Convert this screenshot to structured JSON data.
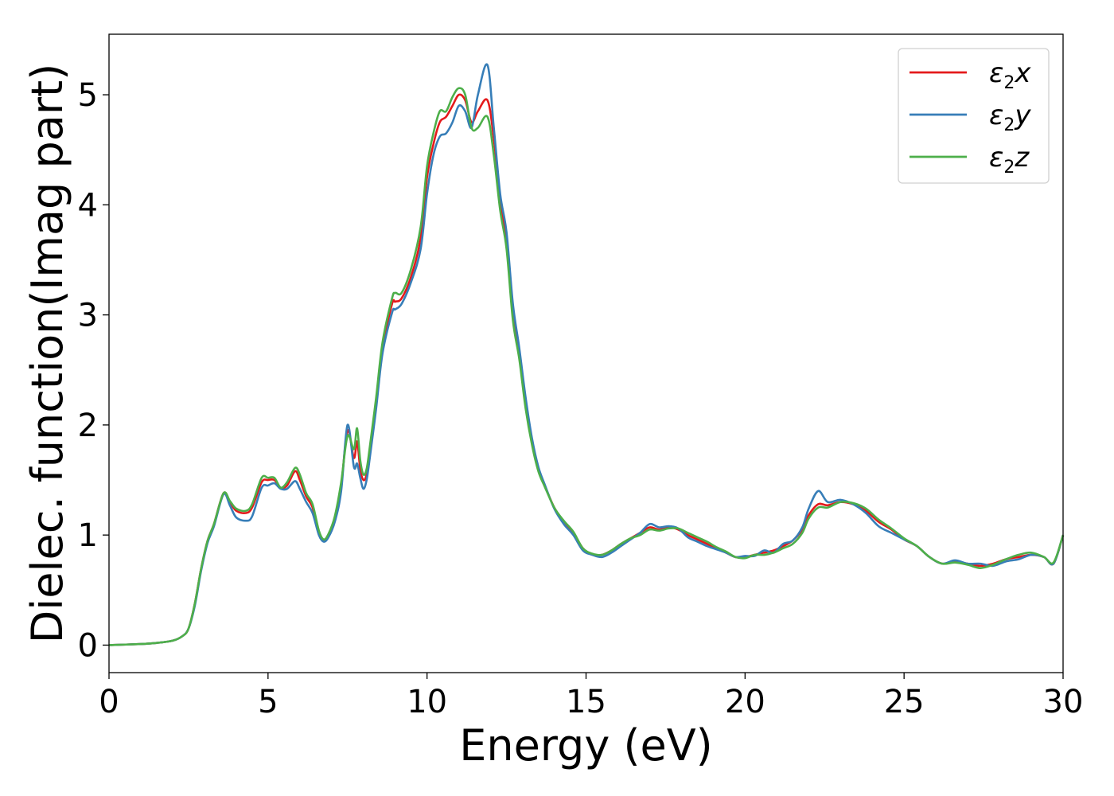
{
  "chart_data": {
    "type": "line",
    "title": "",
    "xlabel": "Energy (eV)",
    "ylabel": "Dielec. function(Imag part)",
    "xlim": [
      0,
      30
    ],
    "ylim": [
      -0.25,
      5.55
    ],
    "xticks": [
      "0",
      "5",
      "10",
      "15",
      "20",
      "25",
      "30"
    ],
    "yticks": [
      "0",
      "1",
      "2",
      "3",
      "4",
      "5"
    ],
    "grid": false,
    "legend_position": "top-right",
    "series": [
      {
        "name": "ε2x",
        "color": "#e41a1c",
        "x": [
          0,
          1,
          1.5,
          2,
          2.3,
          2.5,
          2.7,
          2.9,
          3.1,
          3.3,
          3.6,
          3.8,
          4.0,
          4.3,
          4.5,
          4.8,
          5.0,
          5.2,
          5.4,
          5.6,
          5.85,
          6.0,
          6.2,
          6.4,
          6.6,
          6.75,
          6.9,
          7.1,
          7.3,
          7.5,
          7.7,
          7.8,
          7.9,
          8.0,
          8.1,
          8.2,
          8.4,
          8.6,
          8.9,
          9.0,
          9.2,
          9.5,
          9.8,
          10.0,
          10.2,
          10.4,
          10.6,
          10.8,
          11.0,
          11.2,
          11.4,
          11.6,
          11.9,
          12.1,
          12.3,
          12.5,
          12.7,
          12.9,
          13.1,
          13.3,
          13.5,
          13.7,
          14.0,
          14.3,
          14.6,
          14.9,
          15.2,
          15.5,
          15.8,
          16.1,
          16.4,
          16.7,
          17.0,
          17.3,
          17.6,
          17.9,
          18.2,
          18.5,
          18.8,
          19.1,
          19.4,
          19.7,
          20.0,
          20.3,
          20.6,
          20.9,
          21.2,
          21.5,
          21.8,
          22.0,
          22.3,
          22.6,
          23.0,
          23.4,
          23.8,
          24.2,
          24.6,
          25.0,
          25.4,
          25.8,
          26.2,
          26.6,
          27.0,
          27.4,
          27.8,
          28.2,
          28.6,
          29.0,
          29.4,
          29.7,
          30.0
        ],
        "y": [
          0,
          0.01,
          0.02,
          0.04,
          0.08,
          0.15,
          0.38,
          0.7,
          0.95,
          1.1,
          1.38,
          1.3,
          1.22,
          1.2,
          1.25,
          1.48,
          1.5,
          1.5,
          1.43,
          1.45,
          1.58,
          1.5,
          1.35,
          1.25,
          1.02,
          0.95,
          1.0,
          1.15,
          1.45,
          1.95,
          1.7,
          1.85,
          1.6,
          1.5,
          1.55,
          1.75,
          2.2,
          2.7,
          3.1,
          3.12,
          3.15,
          3.35,
          3.7,
          4.25,
          4.55,
          4.75,
          4.8,
          4.9,
          5.0,
          4.95,
          4.75,
          4.85,
          4.95,
          4.6,
          4.05,
          3.65,
          3.0,
          2.65,
          2.2,
          1.85,
          1.6,
          1.45,
          1.25,
          1.12,
          1.02,
          0.88,
          0.82,
          0.82,
          0.86,
          0.92,
          0.97,
          1.02,
          1.07,
          1.05,
          1.07,
          1.05,
          1.0,
          0.96,
          0.92,
          0.88,
          0.84,
          0.8,
          0.8,
          0.82,
          0.84,
          0.86,
          0.9,
          0.95,
          1.05,
          1.18,
          1.28,
          1.27,
          1.3,
          1.28,
          1.22,
          1.12,
          1.05,
          0.96,
          0.9,
          0.8,
          0.74,
          0.76,
          0.74,
          0.72,
          0.74,
          0.78,
          0.8,
          0.82,
          0.8,
          0.74,
          1.0
        ]
      },
      {
        "name": "ε2y",
        "color": "#377eb8",
        "x": [
          0,
          1,
          1.5,
          2,
          2.3,
          2.5,
          2.7,
          2.9,
          3.1,
          3.3,
          3.6,
          3.8,
          4.0,
          4.3,
          4.5,
          4.8,
          5.0,
          5.2,
          5.4,
          5.6,
          5.85,
          6.0,
          6.2,
          6.4,
          6.6,
          6.75,
          6.9,
          7.1,
          7.3,
          7.5,
          7.7,
          7.8,
          7.9,
          8.0,
          8.1,
          8.2,
          8.4,
          8.6,
          8.9,
          9.0,
          9.2,
          9.5,
          9.8,
          10.0,
          10.2,
          10.4,
          10.6,
          10.8,
          11.0,
          11.2,
          11.4,
          11.6,
          11.9,
          12.1,
          12.3,
          12.5,
          12.7,
          12.9,
          13.1,
          13.3,
          13.5,
          13.7,
          14.0,
          14.3,
          14.6,
          14.9,
          15.2,
          15.5,
          15.8,
          16.1,
          16.4,
          16.7,
          17.0,
          17.3,
          17.6,
          17.9,
          18.2,
          18.5,
          18.8,
          19.1,
          19.4,
          19.7,
          20.0,
          20.3,
          20.6,
          20.9,
          21.2,
          21.5,
          21.8,
          22.0,
          22.3,
          22.6,
          23.0,
          23.4,
          23.8,
          24.2,
          24.6,
          25.0,
          25.4,
          25.8,
          26.2,
          26.6,
          27.0,
          27.4,
          27.8,
          28.2,
          28.6,
          29.0,
          29.4,
          29.7,
          30.0
        ],
        "y": [
          0,
          0.01,
          0.02,
          0.04,
          0.08,
          0.15,
          0.36,
          0.68,
          0.93,
          1.08,
          1.37,
          1.27,
          1.16,
          1.13,
          1.17,
          1.43,
          1.45,
          1.47,
          1.42,
          1.42,
          1.49,
          1.42,
          1.3,
          1.2,
          1.0,
          0.94,
          0.98,
          1.12,
          1.4,
          2.0,
          1.62,
          1.65,
          1.52,
          1.42,
          1.5,
          1.7,
          2.15,
          2.65,
          3.02,
          3.05,
          3.1,
          3.3,
          3.6,
          4.1,
          4.45,
          4.62,
          4.65,
          4.75,
          4.9,
          4.85,
          4.7,
          5.0,
          5.27,
          4.7,
          4.1,
          3.75,
          3.1,
          2.7,
          2.25,
          1.88,
          1.62,
          1.46,
          1.24,
          1.1,
          1.0,
          0.86,
          0.82,
          0.8,
          0.84,
          0.9,
          0.96,
          1.02,
          1.1,
          1.07,
          1.08,
          1.06,
          0.98,
          0.94,
          0.9,
          0.87,
          0.84,
          0.8,
          0.81,
          0.81,
          0.86,
          0.84,
          0.92,
          0.95,
          1.07,
          1.24,
          1.4,
          1.3,
          1.32,
          1.28,
          1.2,
          1.08,
          1.02,
          0.96,
          0.9,
          0.8,
          0.74,
          0.77,
          0.74,
          0.74,
          0.72,
          0.76,
          0.78,
          0.82,
          0.8,
          0.74,
          1.0
        ]
      },
      {
        "name": "ε2z",
        "color": "#4daf4a",
        "x": [
          0,
          1,
          1.5,
          2,
          2.3,
          2.5,
          2.7,
          2.9,
          3.1,
          3.3,
          3.6,
          3.8,
          4.0,
          4.3,
          4.5,
          4.8,
          5.0,
          5.2,
          5.4,
          5.6,
          5.85,
          6.0,
          6.2,
          6.4,
          6.6,
          6.75,
          6.9,
          7.1,
          7.3,
          7.5,
          7.7,
          7.8,
          7.9,
          8.0,
          8.1,
          8.2,
          8.4,
          8.6,
          8.9,
          9.0,
          9.2,
          9.5,
          9.8,
          10.0,
          10.2,
          10.4,
          10.6,
          10.8,
          11.0,
          11.2,
          11.4,
          11.6,
          11.9,
          12.1,
          12.3,
          12.5,
          12.7,
          12.9,
          13.1,
          13.3,
          13.5,
          13.7,
          14.0,
          14.3,
          14.6,
          14.9,
          15.2,
          15.5,
          15.8,
          16.1,
          16.4,
          16.7,
          17.0,
          17.3,
          17.6,
          17.9,
          18.2,
          18.5,
          18.8,
          19.1,
          19.4,
          19.7,
          20.0,
          20.3,
          20.6,
          20.9,
          21.2,
          21.5,
          21.8,
          22.0,
          22.3,
          22.6,
          23.0,
          23.4,
          23.8,
          24.2,
          24.6,
          25.0,
          25.4,
          25.8,
          26.2,
          26.6,
          27.0,
          27.4,
          27.8,
          28.2,
          28.6,
          29.0,
          29.4,
          29.7,
          30.0
        ],
        "y": [
          0,
          0.01,
          0.02,
          0.04,
          0.08,
          0.15,
          0.38,
          0.7,
          0.95,
          1.1,
          1.38,
          1.31,
          1.24,
          1.22,
          1.28,
          1.52,
          1.52,
          1.52,
          1.43,
          1.48,
          1.61,
          1.55,
          1.38,
          1.28,
          1.04,
          0.96,
          1.01,
          1.17,
          1.48,
          1.9,
          1.78,
          1.97,
          1.68,
          1.55,
          1.6,
          1.8,
          2.25,
          2.75,
          3.15,
          3.2,
          3.2,
          3.42,
          3.8,
          4.35,
          4.65,
          4.85,
          4.85,
          4.98,
          5.06,
          5.0,
          4.7,
          4.7,
          4.8,
          4.45,
          3.95,
          3.6,
          2.95,
          2.6,
          2.15,
          1.82,
          1.58,
          1.44,
          1.25,
          1.13,
          1.03,
          0.88,
          0.83,
          0.82,
          0.86,
          0.92,
          0.97,
          1.0,
          1.05,
          1.04,
          1.06,
          1.06,
          1.02,
          0.98,
          0.94,
          0.89,
          0.85,
          0.8,
          0.79,
          0.82,
          0.82,
          0.84,
          0.88,
          0.92,
          1.02,
          1.15,
          1.25,
          1.25,
          1.3,
          1.29,
          1.24,
          1.14,
          1.06,
          0.97,
          0.9,
          0.8,
          0.74,
          0.75,
          0.73,
          0.7,
          0.73,
          0.78,
          0.82,
          0.84,
          0.8,
          0.75,
          1.0
        ]
      }
    ]
  }
}
